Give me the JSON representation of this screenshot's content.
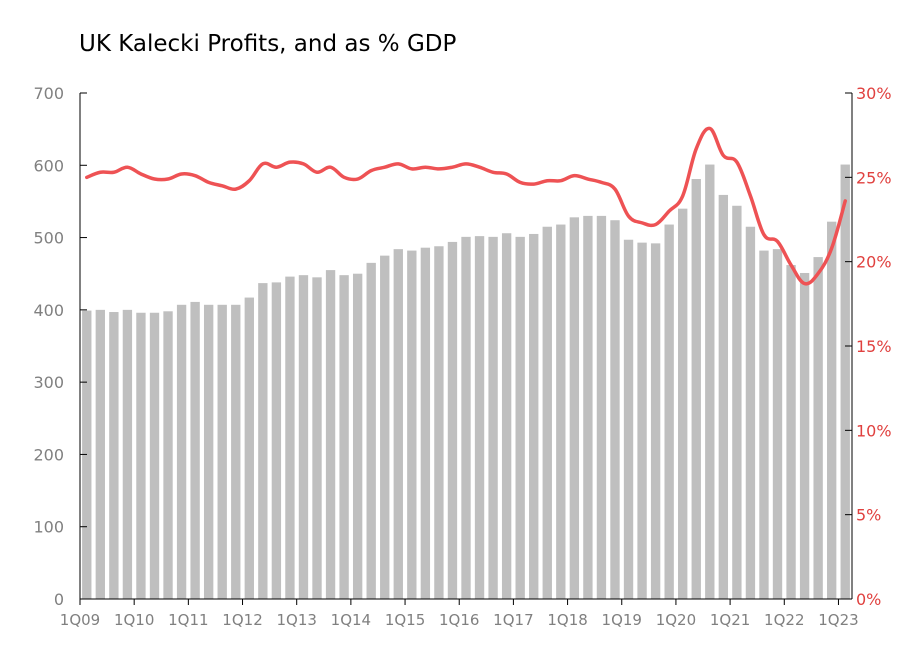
{
  "chart_data": {
    "type": "bar",
    "title": "UK Kalecki Profits, and as % GDP",
    "categories": [
      "1Q09",
      "2Q09",
      "3Q09",
      "4Q09",
      "1Q10",
      "2Q10",
      "3Q10",
      "4Q10",
      "1Q11",
      "2Q11",
      "3Q11",
      "4Q11",
      "1Q12",
      "2Q12",
      "3Q12",
      "4Q12",
      "1Q13",
      "2Q13",
      "3Q13",
      "4Q13",
      "1Q14",
      "2Q14",
      "3Q14",
      "4Q14",
      "1Q15",
      "2Q15",
      "3Q15",
      "4Q15",
      "1Q16",
      "2Q16",
      "3Q16",
      "4Q16",
      "1Q17",
      "2Q17",
      "3Q17",
      "4Q17",
      "1Q18",
      "2Q18",
      "3Q18",
      "4Q18",
      "1Q19",
      "2Q19",
      "3Q19",
      "4Q19",
      "1Q20",
      "2Q20",
      "3Q20",
      "4Q20",
      "1Q21",
      "2Q21",
      "3Q21",
      "4Q21",
      "1Q22",
      "2Q22",
      "3Q22",
      "4Q22",
      "1Q23"
    ],
    "x_tick_labels": [
      "1Q09",
      "1Q10",
      "1Q11",
      "1Q12",
      "1Q13",
      "1Q14",
      "1Q15",
      "1Q16",
      "1Q17",
      "1Q18",
      "1Q19",
      "1Q20",
      "1Q21",
      "1Q22",
      "1Q23"
    ],
    "y_left": {
      "ylim": [
        0,
        700
      ],
      "ticks": [
        0,
        100,
        200,
        300,
        400,
        500,
        600,
        700
      ],
      "tick_labels": [
        "0",
        "100",
        "200",
        "300",
        "400",
        "500",
        "600",
        "700"
      ]
    },
    "y_right": {
      "ylim": [
        0,
        30
      ],
      "ticks": [
        0,
        5,
        10,
        15,
        20,
        25,
        30
      ],
      "tick_labels": [
        "0%",
        "5%",
        "10%",
        "15%",
        "20%",
        "25%",
        "30%"
      ]
    },
    "series": [
      {
        "type": "bar",
        "axis": "left",
        "color": "#bfbfbf",
        "values": [
          399,
          400,
          397,
          400,
          396,
          396,
          398,
          407,
          411,
          407,
          407,
          407,
          417,
          437,
          438,
          446,
          448,
          445,
          455,
          448,
          450,
          465,
          475,
          484,
          482,
          486,
          488,
          494,
          501,
          502,
          501,
          506,
          501,
          505,
          515,
          518,
          528,
          530,
          530,
          524,
          497,
          493,
          492,
          518,
          540,
          581,
          601,
          559,
          544,
          515,
          482,
          484,
          462,
          451,
          473,
          522,
          601
        ]
      },
      {
        "type": "line",
        "axis": "right",
        "color": "#ee5254",
        "values": [
          25.0,
          25.3,
          25.3,
          25.6,
          25.2,
          24.9,
          24.9,
          25.2,
          25.1,
          24.7,
          24.5,
          24.3,
          24.8,
          25.8,
          25.6,
          25.9,
          25.8,
          25.3,
          25.6,
          25.0,
          24.9,
          25.4,
          25.6,
          25.8,
          25.5,
          25.6,
          25.5,
          25.6,
          25.8,
          25.6,
          25.3,
          25.2,
          24.7,
          24.6,
          24.8,
          24.8,
          25.1,
          24.9,
          24.7,
          24.3,
          22.7,
          22.3,
          22.2,
          23.0,
          23.9,
          26.7,
          27.9,
          26.3,
          25.9,
          23.9,
          21.6,
          21.2,
          19.8,
          18.7,
          19.3,
          20.8,
          23.6
        ]
      }
    ]
  }
}
